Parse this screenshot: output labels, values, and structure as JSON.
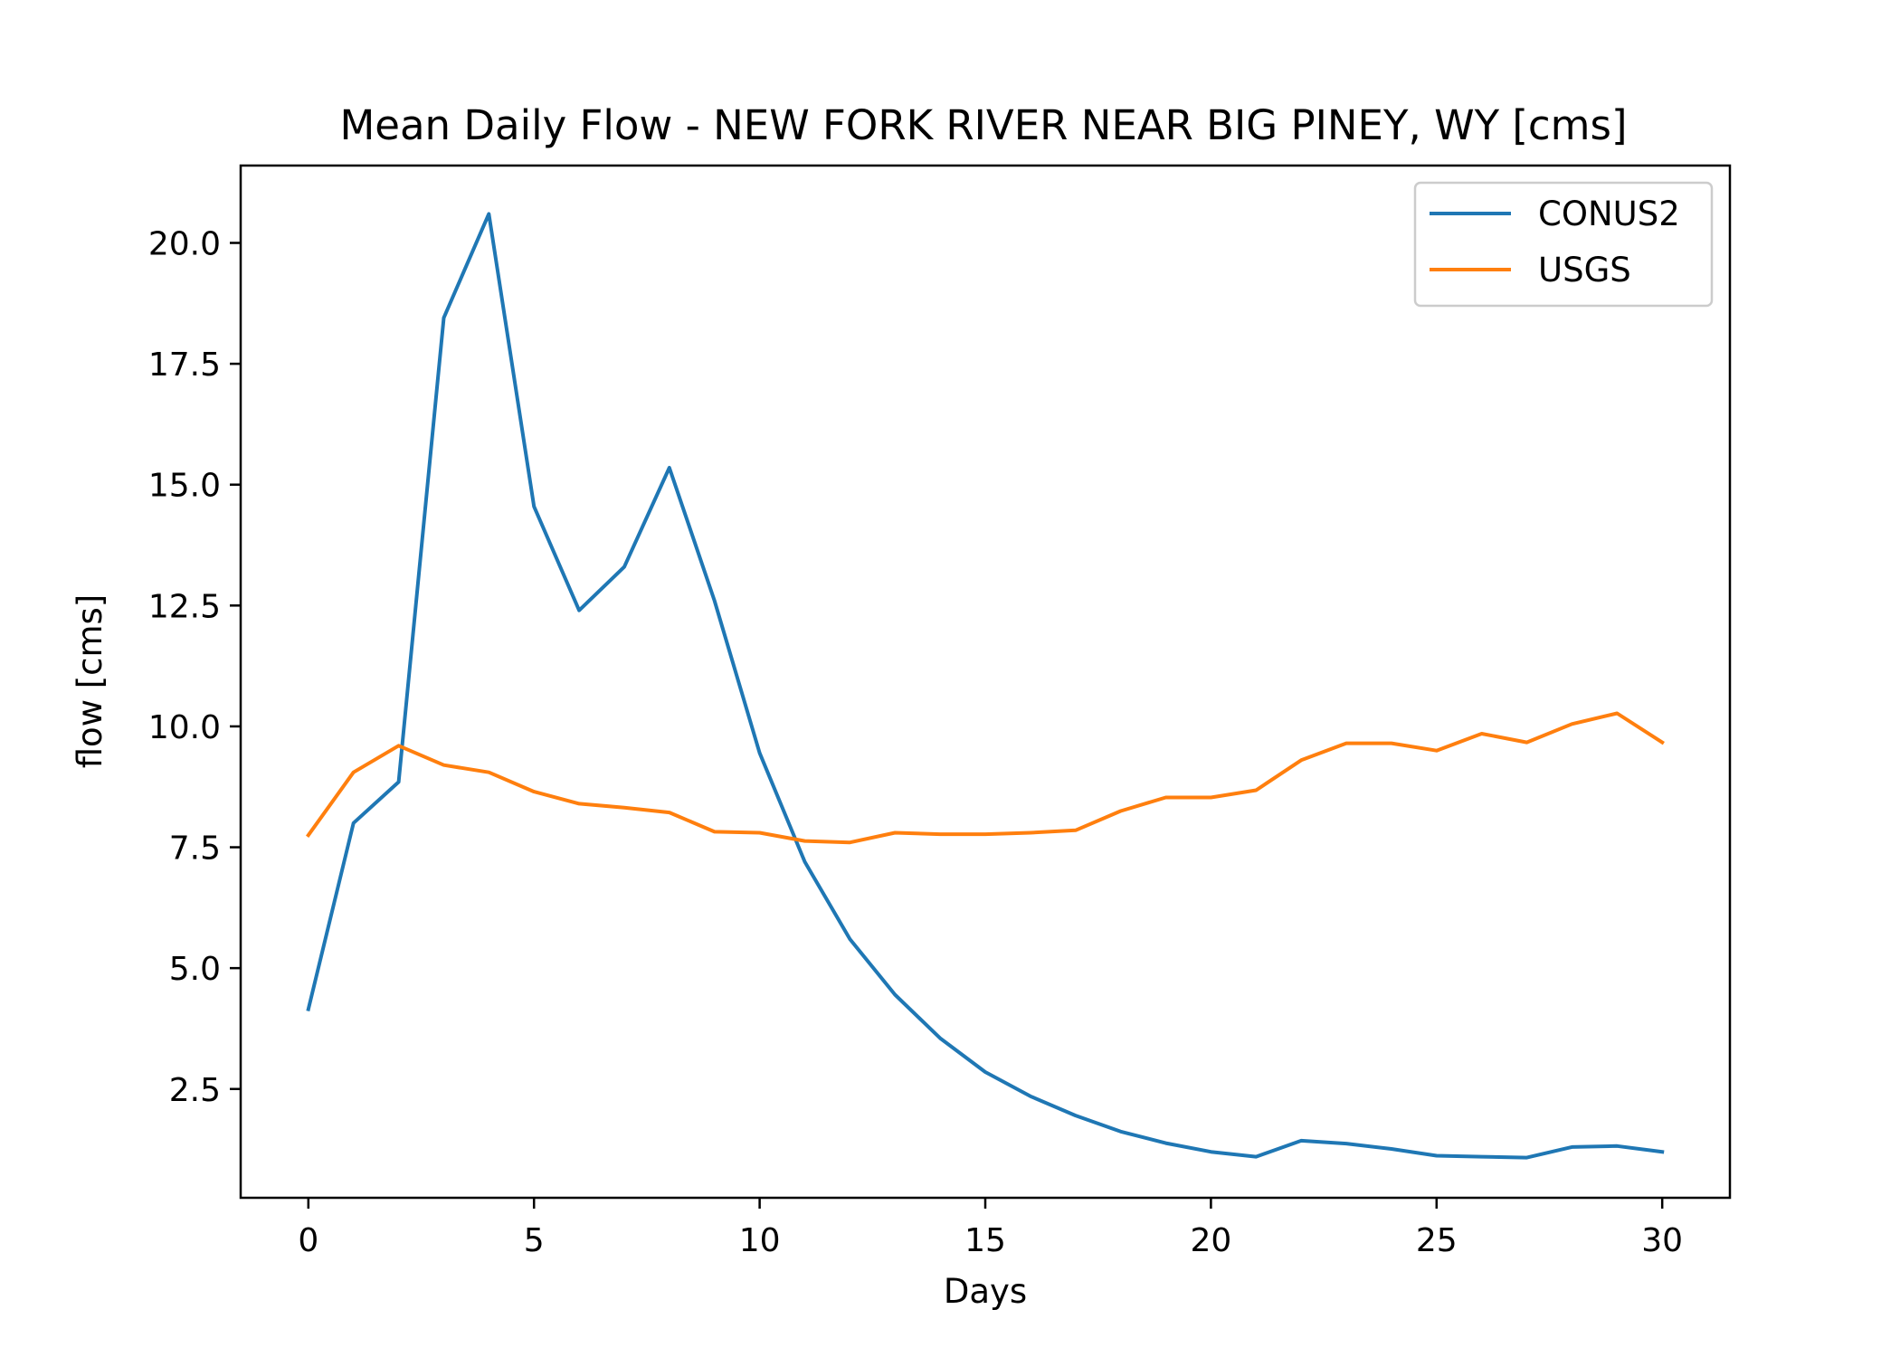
{
  "chart_data": {
    "type": "line",
    "title": "Mean Daily Flow - NEW FORK RIVER NEAR BIG PINEY, WY [cms]",
    "xlabel": "Days",
    "ylabel": "flow [cms]",
    "xlim": [
      -1.5,
      31.5
    ],
    "ylim": [
      0.25,
      21.6
    ],
    "xticks": [
      0,
      5,
      10,
      15,
      20,
      25,
      30
    ],
    "xtick_labels": [
      "0",
      "5",
      "10",
      "15",
      "20",
      "25",
      "30"
    ],
    "yticks": [
      2.5,
      5.0,
      7.5,
      10.0,
      12.5,
      15.0,
      17.5,
      20.0
    ],
    "ytick_labels": [
      "2.5",
      "5.0",
      "7.5",
      "10.0",
      "12.5",
      "15.0",
      "17.5",
      "20.0"
    ],
    "grid": false,
    "legend_position": "top-right",
    "x": [
      0,
      1,
      2,
      3,
      4,
      5,
      6,
      7,
      8,
      9,
      10,
      11,
      12,
      13,
      14,
      15,
      16,
      17,
      18,
      19,
      20,
      21,
      22,
      23,
      24,
      25,
      26,
      27,
      28,
      29,
      30
    ],
    "series": [
      {
        "name": "CONUS2",
        "color": "#1f77b4",
        "values": [
          4.15,
          8.0,
          8.85,
          18.45,
          20.6,
          14.55,
          12.4,
          13.3,
          15.35,
          12.6,
          9.45,
          7.2,
          5.6,
          4.45,
          3.55,
          2.85,
          2.35,
          1.95,
          1.62,
          1.38,
          1.2,
          1.1,
          1.43,
          1.37,
          1.26,
          1.12,
          1.1,
          1.08,
          1.3,
          1.32,
          1.2
        ]
      },
      {
        "name": "USGS",
        "color": "#ff7f0e",
        "values": [
          7.75,
          9.05,
          9.6,
          9.2,
          9.05,
          8.65,
          8.4,
          8.32,
          8.22,
          7.82,
          7.8,
          7.63,
          7.6,
          7.8,
          7.77,
          7.77,
          7.8,
          7.85,
          8.25,
          8.53,
          8.53,
          8.68,
          9.3,
          9.65,
          9.65,
          9.5,
          9.85,
          9.67,
          10.05,
          10.27,
          9.67
        ]
      }
    ]
  }
}
